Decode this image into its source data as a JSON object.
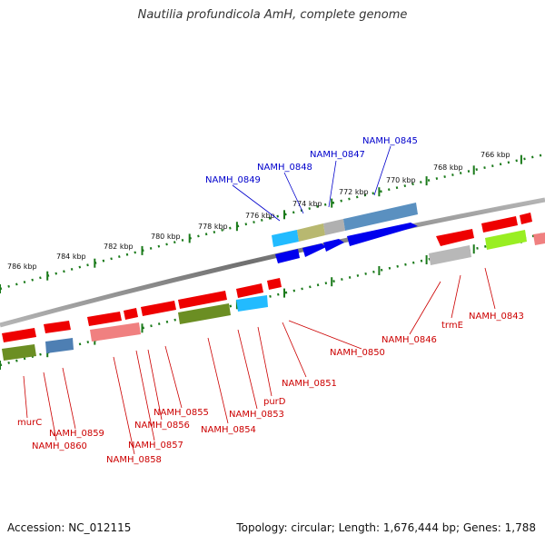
{
  "header": {
    "title": "Nautilia profundicola AmH, complete genome"
  },
  "footer": {
    "accession": "Accession: NC_012115",
    "summary": "Topology: circular; Length: 1,676,444 bp; Genes: 1,788"
  },
  "scale_labels": [
    "766 kbp",
    "768 kbp",
    "770 kbp",
    "772 kbp",
    "774 kbp",
    "776 kbp",
    "778 kbp",
    "780 kbp",
    "782 kbp",
    "784 kbp",
    "786 kbp"
  ],
  "forward_gene_labels": [
    "NAMH_0845",
    "NAMH_0847",
    "NAMH_0848",
    "NAMH_0849"
  ],
  "reverse_gene_labels": [
    "NAMH_0843",
    "trmE",
    "NAMH_0846",
    "NAMH_0850",
    "NAMH_0851",
    "purD",
    "NAMH_0853",
    "NAMH_0854",
    "NAMH_0855",
    "NAMH_0856",
    "NAMH_0857",
    "NAMH_0858",
    "NAMH_0859",
    "NAMH_0860",
    "murC"
  ],
  "colors": {
    "forward_label": "#0000cc",
    "reverse_label": "#cc0000",
    "cds_forward": "#0000ee",
    "cds_reverse": "#ee0000",
    "scale_ticks": "#1a7a1a",
    "backbone": "#808080"
  }
}
